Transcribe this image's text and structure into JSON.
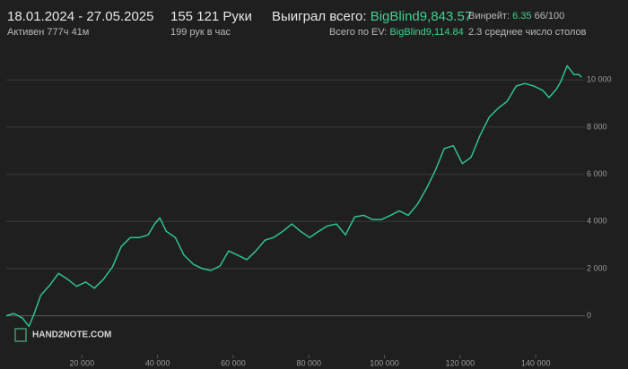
{
  "header": {
    "dates": "18.01.2024 - 27.05.2025",
    "active": "Активен 777ч 41м",
    "hands": "155 121 Руки",
    "per_hour": "199 рук в час",
    "won_label": "Выиграл всего:",
    "won_value": "BigBlind9,843.57",
    "ev_label": "Всего по EV:",
    "ev_value": "BigBlind9,114.84",
    "winrate_label": "Винрейт:",
    "winrate_value": "6.35",
    "winrate_sample": "66/100",
    "tables": "2.3 среднее число столов",
    "logo": "HAND2NOTE.COM"
  },
  "chart_data": {
    "type": "line",
    "color": "#2fc48a",
    "grid": true,
    "xlim": [
      0,
      153000
    ],
    "ylim": [
      -1800,
      11300
    ],
    "xticks": [
      {
        "value": 20000,
        "label": "20 000"
      },
      {
        "value": 40000,
        "label": "40 000"
      },
      {
        "value": 60000,
        "label": "60 000"
      },
      {
        "value": 80000,
        "label": "80 000"
      },
      {
        "value": 100000,
        "label": "100 000"
      },
      {
        "value": 120000,
        "label": "120 000"
      },
      {
        "value": 140000,
        "label": "140 000"
      }
    ],
    "yticks": [
      0,
      {
        "value": 2000,
        "label": "2 000"
      },
      {
        "value": 4000,
        "label": "4 000"
      },
      {
        "value": 6000,
        "label": "6 000"
      },
      {
        "value": 8000,
        "label": "8 000"
      },
      {
        "value": 10000,
        "label": "10 000"
      }
    ],
    "x": [
      0,
      2000,
      4300,
      6000,
      7400,
      9100,
      11500,
      13800,
      16200,
      18600,
      21000,
      23300,
      25700,
      28100,
      30400,
      32800,
      35200,
      37500,
      39200,
      40600,
      42300,
      44700,
      47000,
      49400,
      51800,
      54100,
      56500,
      58800,
      61200,
      63600,
      66000,
      68400,
      70700,
      73100,
      75500,
      77800,
      80200,
      82600,
      84900,
      87300,
      89700,
      92100,
      94500,
      96800,
      99200,
      101600,
      103900,
      106300,
      108700,
      111100,
      113400,
      115800,
      118200,
      120600,
      122900,
      125300,
      127700,
      130000,
      132400,
      134800,
      137100,
      139500,
      141900,
      143500,
      145500,
      146600,
      148300,
      150100,
      151400,
      152100
    ],
    "values": [
      0,
      100,
      -100,
      -450,
      100,
      870,
      1300,
      1800,
      1550,
      1250,
      1430,
      1170,
      1550,
      2080,
      2940,
      3320,
      3320,
      3430,
      3890,
      4150,
      3580,
      3320,
      2570,
      2190,
      2000,
      1920,
      2110,
      2750,
      2570,
      2380,
      2750,
      3210,
      3320,
      3580,
      3890,
      3580,
      3320,
      3580,
      3810,
      3890,
      3430,
      4190,
      4260,
      4080,
      4080,
      4260,
      4450,
      4260,
      4720,
      5400,
      6150,
      7090,
      7210,
      6450,
      6720,
      7660,
      8420,
      8790,
      9090,
      9740,
      9850,
      9740,
      9550,
      9250,
      9620,
      9920,
      10600,
      10230,
      10230,
      10110
    ]
  }
}
